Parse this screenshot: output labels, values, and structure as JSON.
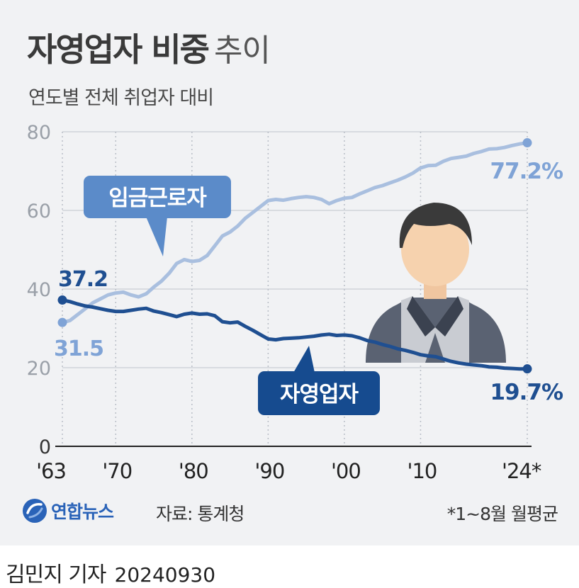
{
  "header": {
    "title_bold": "자영업자 비중",
    "title_light": "추이",
    "subtitle": "연도별 전체 취업자 대비"
  },
  "footer": {
    "brand": "연합뉴스",
    "source": "자료: 통계청",
    "footnote": "*1~8월 월평균",
    "reporter": "김민지 기자",
    "date": "20240930"
  },
  "colors": {
    "background": "#f1f2f4",
    "wage_workers": "#a9bfdf",
    "wage_label_box": "#5b8bc9",
    "self_employed": "#1f4f91",
    "self_label_box": "#164b8f",
    "axis": "#222222",
    "grid": "#cfd3da"
  },
  "icons": {
    "brand_logo": "yonhap-logo-icon",
    "illustration": "worker-person-icon"
  },
  "chart_data": {
    "type": "line",
    "ylim": [
      0,
      80
    ],
    "yticks": [
      0,
      20,
      40,
      60,
      80
    ],
    "xlim": [
      1963,
      2024
    ],
    "xticks": [
      {
        "x": 1963,
        "label": "'63"
      },
      {
        "x": 1970,
        "label": "'70"
      },
      {
        "x": 1980,
        "label": "'80"
      },
      {
        "x": 1990,
        "label": "'90"
      },
      {
        "x": 2000,
        "label": "'00"
      },
      {
        "x": 2010,
        "label": "'10"
      },
      {
        "x": 2024,
        "label": "'24*"
      }
    ],
    "grid": "vertical dotted",
    "series": [
      {
        "name": "임금근로자",
        "start_label": "31.5",
        "end_label": "77.2%",
        "x": [
          1963,
          1964,
          1965,
          1966,
          1967,
          1968,
          1969,
          1970,
          1971,
          1972,
          1973,
          1974,
          1975,
          1976,
          1977,
          1978,
          1979,
          1980,
          1981,
          1982,
          1983,
          1984,
          1985,
          1986,
          1987,
          1988,
          1989,
          1990,
          1991,
          1992,
          1993,
          1994,
          1995,
          1996,
          1997,
          1998,
          1999,
          2000,
          2001,
          2002,
          2003,
          2004,
          2005,
          2006,
          2007,
          2008,
          2009,
          2010,
          2011,
          2012,
          2013,
          2014,
          2015,
          2016,
          2017,
          2018,
          2019,
          2020,
          2021,
          2022,
          2023,
          2024
        ],
        "values": [
          31.5,
          32.0,
          33.5,
          35.0,
          36.5,
          37.5,
          38.5,
          39.0,
          39.2,
          38.5,
          38.0,
          38.8,
          40.5,
          42.0,
          44.0,
          46.5,
          47.5,
          47.0,
          47.3,
          48.5,
          51.0,
          53.5,
          54.5,
          56.0,
          58.0,
          59.5,
          61.0,
          62.5,
          62.8,
          62.6,
          63.0,
          63.3,
          63.5,
          63.3,
          62.8,
          61.7,
          62.5,
          63.1,
          63.3,
          64.2,
          65.0,
          65.8,
          66.3,
          67.0,
          67.7,
          68.5,
          69.5,
          70.8,
          71.4,
          71.5,
          72.5,
          73.2,
          73.5,
          73.8,
          74.5,
          75.0,
          75.6,
          75.7,
          76.0,
          76.5,
          76.9,
          77.2
        ]
      },
      {
        "name": "자영업자",
        "start_label": "37.2",
        "end_label": "19.7%",
        "x": [
          1963,
          1964,
          1965,
          1966,
          1967,
          1968,
          1969,
          1970,
          1971,
          1972,
          1973,
          1974,
          1975,
          1976,
          1977,
          1978,
          1979,
          1980,
          1981,
          1982,
          1983,
          1984,
          1985,
          1986,
          1987,
          1988,
          1989,
          1990,
          1991,
          1992,
          1993,
          1994,
          1995,
          1996,
          1997,
          1998,
          1999,
          2000,
          2001,
          2002,
          2003,
          2004,
          2005,
          2006,
          2007,
          2008,
          2009,
          2010,
          2011,
          2012,
          2013,
          2014,
          2015,
          2016,
          2017,
          2018,
          2019,
          2020,
          2021,
          2022,
          2023,
          2024
        ],
        "values": [
          37.2,
          36.8,
          36.2,
          35.7,
          35.4,
          35.0,
          34.6,
          34.3,
          34.3,
          34.6,
          34.9,
          35.1,
          34.4,
          34.0,
          33.5,
          33.0,
          33.6,
          33.9,
          33.6,
          33.7,
          33.2,
          31.7,
          31.4,
          31.6,
          30.5,
          29.5,
          28.4,
          27.3,
          27.1,
          27.4,
          27.5,
          27.6,
          27.8,
          28.0,
          28.3,
          28.5,
          28.2,
          28.3,
          28.1,
          27.6,
          26.9,
          26.5,
          25.9,
          25.4,
          24.8,
          24.4,
          23.9,
          23.3,
          23.0,
          22.8,
          22.2,
          21.6,
          21.2,
          20.9,
          20.7,
          20.5,
          20.2,
          20.1,
          19.9,
          19.8,
          19.7,
          19.7
        ]
      }
    ]
  }
}
